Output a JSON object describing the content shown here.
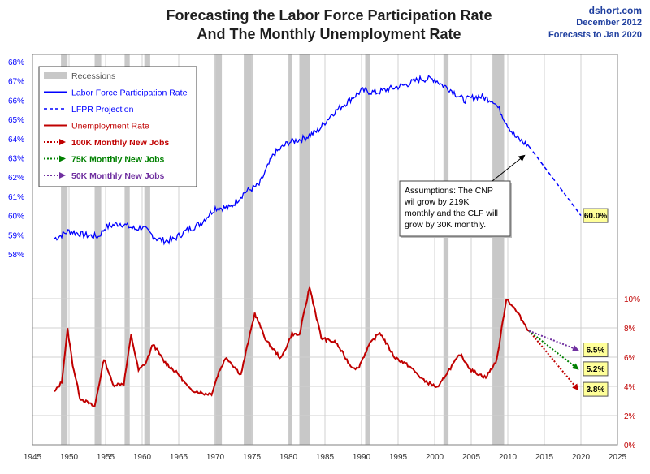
{
  "header": {
    "title_line1": "Forecasting the Labor Force Participation Rate",
    "title_line2": "And The Monthly Unemployment Rate",
    "source": "dshort.com",
    "date": "December 2012",
    "forecast_note": "Forecasts to Jan 2020"
  },
  "chart_data": {
    "type": "line",
    "title": "Forecasting the Labor Force Participation Rate And The Monthly Unemployment Rate",
    "xlabel": "",
    "ylabel": "",
    "xlim": [
      1945,
      2025
    ],
    "x_ticks": [
      1945,
      1950,
      1955,
      1960,
      1965,
      1970,
      1975,
      1980,
      1985,
      1990,
      1995,
      2000,
      2005,
      2010,
      2015,
      2020,
      2025
    ],
    "lfpr_axis": {
      "side": "left",
      "range": [
        58,
        68
      ],
      "ticks": [
        "58%",
        "59%",
        "60%",
        "61%",
        "62%",
        "63%",
        "64%",
        "65%",
        "66%",
        "67%",
        "68%"
      ]
    },
    "unemployment_axis": {
      "side": "right",
      "range": [
        0,
        10
      ],
      "ticks": [
        "0%",
        "2%",
        "4%",
        "6%",
        "8%",
        "10%"
      ]
    },
    "grid": true,
    "legend_position": "top-left",
    "colors": {
      "lfpr": "#0000ff",
      "unemployment": "#c00000",
      "jobs100k": "#c00000",
      "jobs75k": "#008000",
      "jobs50k": "#7030a0",
      "recession": "#c8c8c8",
      "callout": "#ffff99"
    },
    "recessions": [
      [
        1948.9,
        1949.8
      ],
      [
        1953.5,
        1954.4
      ],
      [
        1957.6,
        1958.3
      ],
      [
        1960.3,
        1961.1
      ],
      [
        1969.9,
        1970.9
      ],
      [
        1973.9,
        1975.2
      ],
      [
        1980.0,
        1980.5
      ],
      [
        1981.5,
        1982.9
      ],
      [
        1990.5,
        1991.2
      ],
      [
        2001.2,
        2001.9
      ],
      [
        2007.9,
        2009.5
      ]
    ],
    "series": [
      {
        "name": "Labor Force Participation Rate",
        "axis": "lfpr",
        "x": [
          1948,
          1950,
          1952,
          1954,
          1955,
          1957,
          1959,
          1960,
          1962,
          1963,
          1964,
          1966,
          1968,
          1970,
          1972,
          1974,
          1976,
          1978,
          1980,
          1982,
          1984,
          1986,
          1988,
          1990,
          1992,
          1994,
          1996,
          1998,
          2000,
          2001,
          2002,
          2004,
          2006,
          2008,
          2009,
          2010,
          2011,
          2012.9
        ],
        "values": [
          58.8,
          59.2,
          59.0,
          58.9,
          59.4,
          59.6,
          59.3,
          59.4,
          58.8,
          58.7,
          58.7,
          59.2,
          59.6,
          60.4,
          60.4,
          61.2,
          61.6,
          63.2,
          63.8,
          64.0,
          64.4,
          65.3,
          65.9,
          66.5,
          66.4,
          66.6,
          66.8,
          67.1,
          67.1,
          66.8,
          66.6,
          66.0,
          66.2,
          66.0,
          65.4,
          64.7,
          64.1,
          63.6
        ]
      },
      {
        "name": "LFPR Projection",
        "axis": "lfpr",
        "x": [
          2012.9,
          2020.0
        ],
        "values": [
          63.6,
          60.0
        ]
      },
      {
        "name": "Unemployment Rate",
        "axis": "unemployment",
        "x": [
          1948,
          1949,
          1949.8,
          1950.5,
          1951.5,
          1953.5,
          1954.8,
          1956,
          1957.5,
          1958.5,
          1959.5,
          1960.5,
          1961.5,
          1963,
          1965,
          1966.5,
          1968.5,
          1969.5,
          1970.5,
          1971.5,
          1973.5,
          1975.4,
          1977,
          1979,
          1980.5,
          1981.5,
          1982.9,
          1984.5,
          1986.5,
          1988.5,
          1989.5,
          1991,
          1992.5,
          1994.5,
          1996.5,
          1998.5,
          2000.5,
          2001.5,
          2003.5,
          2005,
          2007,
          2008.5,
          2009.8,
          2010.5,
          2011.5,
          2012.9
        ],
        "values": [
          3.6,
          4.3,
          7.9,
          5.5,
          3.2,
          2.6,
          5.9,
          4.1,
          4.2,
          7.5,
          5.1,
          5.6,
          6.9,
          5.7,
          4.8,
          3.8,
          3.5,
          3.5,
          5.0,
          6.0,
          4.8,
          9.0,
          7.1,
          5.9,
          7.6,
          7.5,
          10.8,
          7.3,
          7.0,
          5.4,
          5.2,
          6.8,
          7.7,
          6.0,
          5.4,
          4.4,
          3.9,
          4.8,
          6.2,
          5.1,
          4.6,
          5.8,
          10.0,
          9.6,
          8.9,
          7.8
        ]
      },
      {
        "name": "100K Monthly New Jobs",
        "axis": "unemployment",
        "x": [
          2012.9,
          2020.0
        ],
        "values": [
          7.8,
          3.8
        ]
      },
      {
        "name": "75K Monthly New Jobs",
        "axis": "unemployment",
        "x": [
          2012.9,
          2020.0
        ],
        "values": [
          7.8,
          5.2
        ]
      },
      {
        "name": "50K Monthly New Jobs",
        "axis": "unemployment",
        "x": [
          2012.9,
          2020.0
        ],
        "values": [
          7.8,
          6.5
        ]
      }
    ],
    "legend": {
      "recessions": "Recessions",
      "lfpr": "Labor Force Participation Rate",
      "lfpr_projection": "LFPR Projection",
      "unemployment": "Unemployment Rate",
      "jobs100k": "100K Monthly New Jobs",
      "jobs75k": "75K Monthly New Jobs",
      "jobs50k": "50K Monthly New Jobs"
    },
    "annotations": {
      "assumption_lines": [
        "Assumptions: The CNP",
        "wil grow by 219K",
        "monthly and the CLF will",
        "grow by 30K monthly."
      ],
      "lfpr_end": "60.0%",
      "jobs50k_end": "6.5%",
      "jobs75k_end": "5.2%",
      "jobs100k_end": "3.8%"
    }
  }
}
